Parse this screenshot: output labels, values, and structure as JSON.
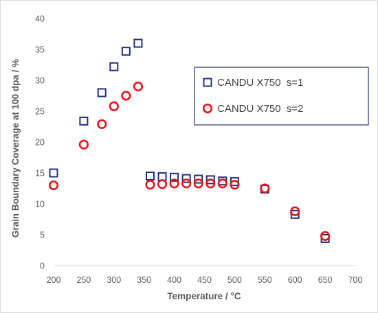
{
  "chart_data": {
    "type": "scatter",
    "title": "",
    "xlabel": "Temperature / °C",
    "ylabel": "Grain Boundary Coverage at 100 dpa / %",
    "xlim": [
      200,
      700
    ],
    "ylim": [
      0,
      40
    ],
    "xticks": [
      200,
      250,
      300,
      350,
      400,
      450,
      500,
      550,
      600,
      650,
      700
    ],
    "yticks": [
      0,
      5,
      10,
      15,
      20,
      25,
      30,
      35,
      40
    ],
    "grid": false,
    "legend_position": "right-middle",
    "series": [
      {
        "name": "CANDU X750  s=1",
        "marker": "square",
        "color": "#1f2f7a",
        "points": [
          {
            "x": 200,
            "y": 15.0
          },
          {
            "x": 250,
            "y": 23.4
          },
          {
            "x": 280,
            "y": 28.0
          },
          {
            "x": 300,
            "y": 32.2
          },
          {
            "x": 320,
            "y": 34.7
          },
          {
            "x": 340,
            "y": 36.0
          },
          {
            "x": 360,
            "y": 14.5
          },
          {
            "x": 380,
            "y": 14.4
          },
          {
            "x": 400,
            "y": 14.3
          },
          {
            "x": 420,
            "y": 14.1
          },
          {
            "x": 440,
            "y": 14.0
          },
          {
            "x": 460,
            "y": 13.9
          },
          {
            "x": 480,
            "y": 13.7
          },
          {
            "x": 500,
            "y": 13.6
          },
          {
            "x": 550,
            "y": 12.4
          },
          {
            "x": 600,
            "y": 8.3
          },
          {
            "x": 650,
            "y": 4.4
          }
        ]
      },
      {
        "name": "CANDU X750  s=2",
        "marker": "circle",
        "color": "#e8131a",
        "points": [
          {
            "x": 200,
            "y": 13.0
          },
          {
            "x": 250,
            "y": 19.6
          },
          {
            "x": 280,
            "y": 22.9
          },
          {
            "x": 300,
            "y": 25.8
          },
          {
            "x": 320,
            "y": 27.5
          },
          {
            "x": 340,
            "y": 29.0
          },
          {
            "x": 360,
            "y": 13.1
          },
          {
            "x": 380,
            "y": 13.2
          },
          {
            "x": 400,
            "y": 13.3
          },
          {
            "x": 420,
            "y": 13.3
          },
          {
            "x": 440,
            "y": 13.3
          },
          {
            "x": 460,
            "y": 13.3
          },
          {
            "x": 480,
            "y": 13.3
          },
          {
            "x": 500,
            "y": 13.1
          },
          {
            "x": 550,
            "y": 12.5
          },
          {
            "x": 600,
            "y": 8.8
          },
          {
            "x": 650,
            "y": 4.8
          }
        ]
      }
    ]
  }
}
